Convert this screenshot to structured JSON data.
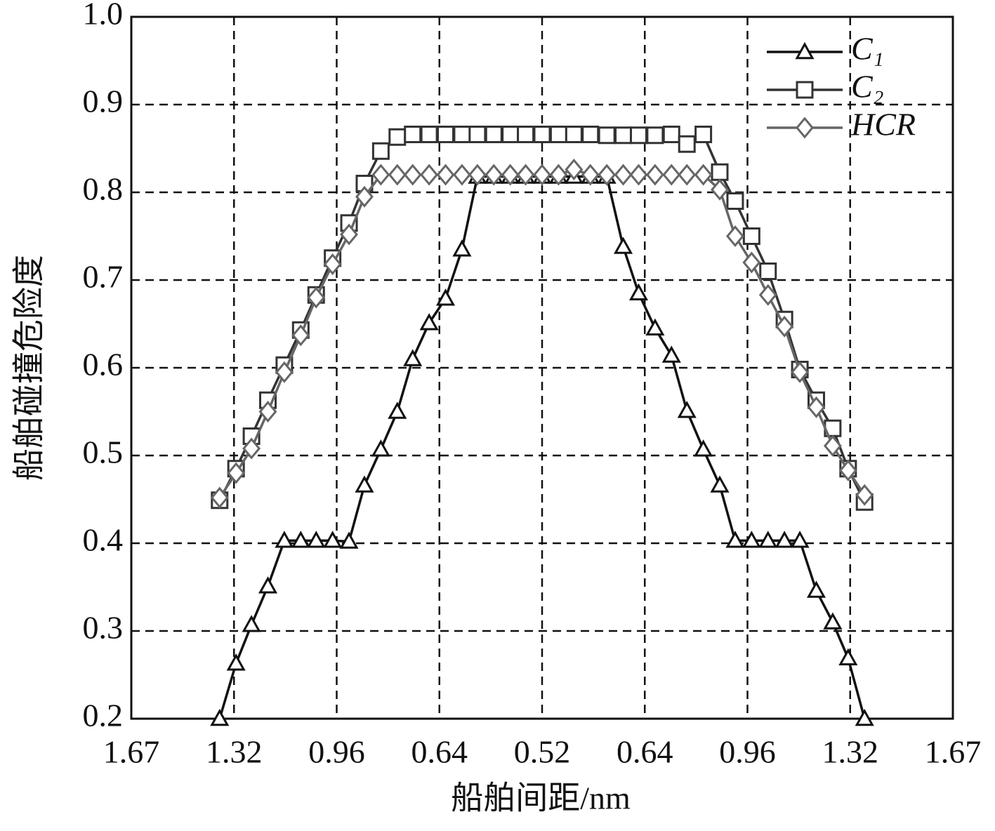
{
  "chart_data": {
    "type": "line",
    "x_label": "船舶间距/nm",
    "y_label": "船舶碰撞危险度",
    "x": [
      0.86,
      1.02,
      1.17,
      1.33,
      1.49,
      1.65,
      1.8,
      1.96,
      2.12,
      2.27,
      2.43,
      2.59,
      2.74,
      2.9,
      3.06,
      3.22,
      3.37,
      3.53,
      3.69,
      3.84,
      4.0,
      4.16,
      4.31,
      4.47,
      4.63,
      4.79,
      4.94,
      5.1,
      5.26,
      5.41,
      5.57,
      5.73,
      5.88,
      6.04,
      6.2,
      6.36,
      6.51,
      6.67,
      6.83,
      6.98,
      7.14
    ],
    "xlim": [
      0,
      8
    ],
    "xticks": [
      {
        "value": 0,
        "label": "1.67"
      },
      {
        "value": 1,
        "label": "1.32"
      },
      {
        "value": 2,
        "label": "0.96"
      },
      {
        "value": 3,
        "label": "0.64"
      },
      {
        "value": 4,
        "label": "0.52"
      },
      {
        "value": 5,
        "label": "0.64"
      },
      {
        "value": 6,
        "label": "0.96"
      },
      {
        "value": 7,
        "label": "1.32"
      },
      {
        "value": 8,
        "label": "1.67"
      }
    ],
    "ylim": [
      0.2,
      1
    ],
    "yticks": [
      0.2,
      0.3,
      0.4,
      0.5,
      0.6,
      0.7,
      0.8,
      0.9,
      {
        "value": 1,
        "label": "1.0"
      }
    ],
    "grid": true,
    "legend": "upper right",
    "series": [
      {
        "name": "C₁",
        "color": "#111111",
        "marker": "triangle",
        "values": [
          0.2,
          0.263,
          0.307,
          0.351,
          0.403,
          0.403,
          0.403,
          0.403,
          0.402,
          0.466,
          0.507,
          0.55,
          0.61,
          0.651,
          0.679,
          0.735,
          0.818,
          0.818,
          0.818,
          0.818,
          0.818,
          0.818,
          0.818,
          0.818,
          0.818,
          0.738,
          0.685,
          0.645,
          0.614,
          0.551,
          0.507,
          0.466,
          0.403,
          0.403,
          0.403,
          0.403,
          0.403,
          0.346,
          0.31,
          0.269,
          0.2
        ]
      },
      {
        "name": "C₂",
        "color": "#333333",
        "marker": "square",
        "values": [
          0.449,
          0.485,
          0.522,
          0.563,
          0.603,
          0.643,
          0.683,
          0.725,
          0.765,
          0.81,
          0.847,
          0.863,
          0.866,
          0.866,
          0.866,
          0.866,
          0.866,
          0.866,
          0.866,
          0.866,
          0.866,
          0.866,
          0.866,
          0.866,
          0.865,
          0.865,
          0.865,
          0.865,
          0.866,
          0.855,
          0.866,
          0.823,
          0.79,
          0.75,
          0.71,
          0.655,
          0.598,
          0.563,
          0.531,
          0.485,
          0.447
        ]
      },
      {
        "name": "HCR",
        "color": "#666666",
        "marker": "diamond",
        "values": [
          0.452,
          0.48,
          0.508,
          0.55,
          0.595,
          0.637,
          0.68,
          0.718,
          0.752,
          0.795,
          0.82,
          0.82,
          0.82,
          0.82,
          0.82,
          0.82,
          0.82,
          0.82,
          0.82,
          0.82,
          0.82,
          0.82,
          0.826,
          0.82,
          0.82,
          0.82,
          0.82,
          0.82,
          0.82,
          0.82,
          0.82,
          0.803,
          0.75,
          0.72,
          0.683,
          0.647,
          0.595,
          0.555,
          0.511,
          0.483,
          0.455
        ]
      }
    ]
  }
}
